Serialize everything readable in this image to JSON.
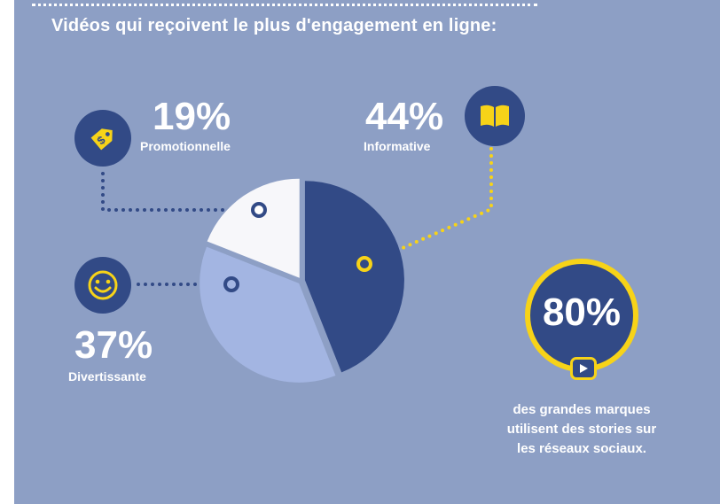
{
  "title": "Vidéos qui reçoivent le plus d'engagement en ligne:",
  "chart_data": {
    "type": "pie",
    "title": "Vidéos qui reçoivent le plus d'engagement en ligne:",
    "slices": [
      {
        "label": "Informative",
        "value": 44,
        "display": "44%",
        "color": "#324a86",
        "icon": "book-icon"
      },
      {
        "label": "Divertissante",
        "value": 37,
        "display": "37%",
        "color": "#a3b5e2",
        "icon": "smiley-icon"
      },
      {
        "label": "Promotionnelle",
        "value": 19,
        "display": "19%",
        "color": "#f7f7fa",
        "icon": "price-tag-icon"
      }
    ]
  },
  "stat": {
    "value": "80%",
    "caption_lines": [
      "des grandes marques",
      "utilisent des stories sur",
      "les réseaux sociaux."
    ],
    "icon": "play-icon"
  },
  "colors": {
    "background": "#8d9fc5",
    "navy": "#324a86",
    "yellow": "#f7d318",
    "white": "#ffffff"
  }
}
